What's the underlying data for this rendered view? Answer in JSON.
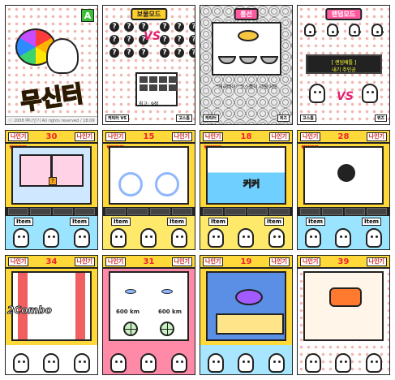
{
  "screens": [
    {
      "id": "title",
      "logo": "무신터",
      "brand_badge": "A",
      "footer": "ⓒ 2008 ㈜나인기 All rights reserved / 18:09"
    },
    {
      "id": "mode-select",
      "ribbon": "보물모드",
      "vs": "VS",
      "best_label": "최고:",
      "best_value": "9점",
      "left_chip": "캐릭터 VS",
      "right_chip": "고스톱"
    },
    {
      "id": "quiz",
      "ribbon": "풍선",
      "message": "\"캐리비아\" 코스툼이 나왔어요",
      "left_chip": "캐릭터",
      "right_chip": "퀴즈"
    },
    {
      "id": "vs-mode",
      "ribbon": "랜덤모드",
      "panel_line1": "[ 랜덤배틀 ]",
      "panel_line2": "내기 주인공",
      "vs": "VS",
      "left_chip": "고스톱",
      "right_chip": "퀴즈"
    },
    {
      "id": "room-stage",
      "hud_left": "나인기",
      "hud_score": "30",
      "hud_right": "나인기",
      "item_label": "Item"
    },
    {
      "id": "ring-stage",
      "hud_left": "나인기",
      "hud_score": "15",
      "hud_right": "나인기",
      "item_label": "Item"
    },
    {
      "id": "pool-stage",
      "hud_left": "나인기",
      "hud_score": "18",
      "hud_right": "나인기",
      "item_label": "Item",
      "splash": "커커"
    },
    {
      "id": "dark-stage",
      "hud_left": "나인기",
      "hud_score": "28",
      "hud_right": "나인기",
      "item_label": "Item"
    },
    {
      "id": "combo-stage",
      "hud_left": "나인기",
      "hud_score": "34",
      "hud_right": "나인기",
      "combo": "2Combo"
    },
    {
      "id": "shooter-stage",
      "hud_left": "나인기",
      "hud_score": "31",
      "hud_right": "나인기",
      "dist_left": "600",
      "dist_right": "600",
      "unit": "km"
    },
    {
      "id": "space-stage",
      "hud_left": "나인기",
      "hud_score": "19",
      "hud_right": "나인기"
    },
    {
      "id": "boss-stage",
      "hud_left": "나인기",
      "hud_score": "39",
      "hud_right": "나인기"
    }
  ]
}
